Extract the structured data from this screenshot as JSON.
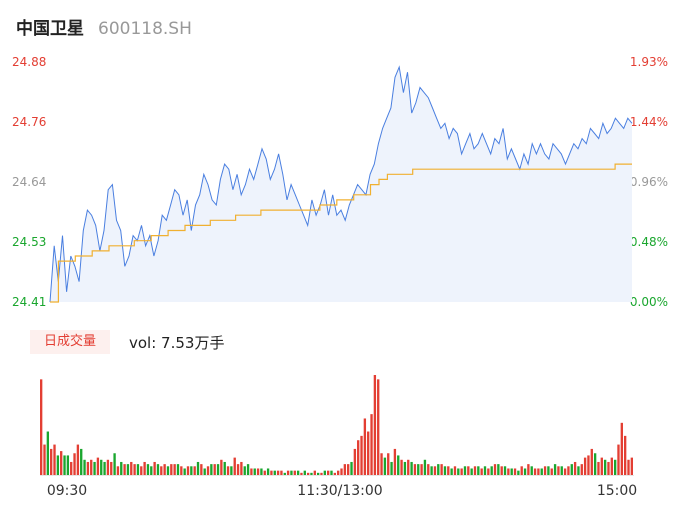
{
  "stock": {
    "name": "中国卫星",
    "code": "600118.SH"
  },
  "colors": {
    "up": "#e33e33",
    "down": "#1aa62e",
    "price_line": "#4a7fe0",
    "avg_line": "#f0b030",
    "area_fill": "#eef3fc"
  },
  "volume_tab": {
    "label": "日成交量"
  },
  "volume_readout": {
    "text": "vol: 7.53万手"
  },
  "time_axis": {
    "labels": [
      "09:30",
      "11:30/13:00",
      "15:00"
    ]
  },
  "chart_data": {
    "type": "line",
    "title": "",
    "price_axis": {
      "ticks": [
        "24.88",
        "24.76",
        "24.64",
        "24.53",
        "24.41"
      ],
      "tick_colors": [
        "up",
        "up",
        "neutral",
        "down",
        "down"
      ]
    },
    "pct_axis": {
      "ticks": [
        "1.93%",
        "1.44%",
        "0.96%",
        "0.48%",
        "0.00%"
      ],
      "tick_colors": [
        "up",
        "up",
        "neutral",
        "down",
        "down"
      ]
    },
    "ylim": [
      24.41,
      24.88
    ],
    "x_sessions": "09:30-11:30, 13:00-15:00",
    "series": [
      {
        "values": [
          24.41,
          24.52,
          24.45,
          24.54,
          24.43,
          24.5,
          24.48,
          24.45,
          24.55,
          24.59,
          24.58,
          24.56,
          24.51,
          24.55,
          24.63,
          24.64,
          24.57,
          24.55,
          24.48,
          24.5,
          24.54,
          24.53,
          24.56,
          24.52,
          24.54,
          24.5,
          24.53,
          24.58,
          24.57,
          24.6,
          24.63,
          24.62,
          24.58,
          24.61,
          24.55,
          24.6,
          24.62,
          24.66,
          24.64,
          24.61,
          24.6,
          24.65,
          24.68,
          24.67,
          24.63,
          24.66,
          24.62,
          24.64,
          24.67,
          24.65,
          24.68,
          24.71,
          24.69,
          24.65,
          24.67,
          24.7,
          24.66,
          24.61,
          24.64,
          24.62,
          24.6,
          24.58,
          24.56,
          24.61,
          24.58,
          24.6,
          24.63,
          24.58,
          24.62,
          24.58,
          24.59,
          24.57,
          24.6,
          24.62,
          24.64,
          24.63,
          24.62,
          24.66,
          24.68,
          24.72,
          24.75,
          24.77,
          24.79,
          24.85,
          24.87,
          24.82,
          24.86,
          24.78,
          24.8,
          24.83,
          24.82,
          24.81,
          24.79,
          24.77,
          24.75,
          24.76,
          24.73,
          24.75,
          24.74,
          24.7,
          24.72,
          24.74,
          24.71,
          24.72,
          24.74,
          24.72,
          24.7,
          24.73,
          24.72,
          24.75,
          24.69,
          24.71,
          24.69,
          24.67,
          24.7,
          24.68,
          24.72,
          24.7,
          24.72,
          24.7,
          24.69,
          24.72,
          24.71,
          24.7,
          24.68,
          24.7,
          24.72,
          24.71,
          24.73,
          24.72,
          24.75,
          24.74,
          24.73,
          24.76,
          24.74,
          24.75,
          24.77,
          24.76,
          24.75,
          24.77,
          24.76
        ],
        "description": "price"
      },
      {
        "values": [
          24.41,
          24.49,
          24.49,
          24.5,
          24.5,
          24.51,
          24.51,
          24.52,
          24.52,
          24.52,
          24.53,
          24.53,
          24.54,
          24.54,
          24.55,
          24.55,
          24.56,
          24.56,
          24.56,
          24.57,
          24.57,
          24.57,
          24.58,
          24.58,
          24.58,
          24.59,
          24.59,
          24.59,
          24.59,
          24.59,
          24.59,
          24.59,
          24.6,
          24.6,
          24.61,
          24.61,
          24.62,
          24.62,
          24.64,
          24.65,
          24.66,
          24.66,
          24.66,
          24.67,
          24.67,
          24.67,
          24.67,
          24.67,
          24.67,
          24.67,
          24.67,
          24.67,
          24.67,
          24.67,
          24.67,
          24.67,
          24.67,
          24.67,
          24.67,
          24.67,
          24.67,
          24.67,
          24.67,
          24.67,
          24.67,
          24.67,
          24.67,
          24.68,
          24.68,
          24.68
        ],
        "description": "average"
      }
    ],
    "volume": {
      "values": [
        44,
        14,
        20,
        12,
        14,
        9,
        11,
        9,
        9,
        6,
        10,
        14,
        12,
        7,
        6,
        7,
        6,
        8,
        7,
        6,
        7,
        6,
        10,
        4,
        6,
        5,
        5,
        6,
        5,
        5,
        4,
        6,
        5,
        4,
        6,
        5,
        4,
        5,
        4,
        5,
        5,
        5,
        4,
        3,
        4,
        4,
        4,
        6,
        5,
        3,
        4,
        5,
        5,
        5,
        7,
        6,
        4,
        4,
        8,
        5,
        6,
        4,
        5,
        3,
        3,
        3,
        3,
        2,
        3,
        2,
        2,
        2,
        2,
        1,
        2,
        2,
        2,
        2,
        1,
        2,
        1,
        1,
        2,
        1,
        1,
        2,
        2,
        2,
        1,
        2,
        3,
        5,
        5,
        6,
        12,
        16,
        18,
        26,
        20,
        28,
        46,
        44,
        10,
        8,
        10,
        6,
        12,
        9,
        7,
        6,
        7,
        6,
        5,
        5,
        5,
        7,
        5,
        4,
        4,
        5,
        5,
        4,
        4,
        3,
        4,
        3,
        3,
        4,
        4,
        3,
        4,
        4,
        3,
        4,
        3,
        4,
        5,
        5,
        4,
        4,
        3,
        3,
        3,
        2,
        4,
        3,
        5,
        4,
        3,
        3,
        3,
        4,
        4,
        3,
        5,
        4,
        4,
        3,
        4,
        5,
        6,
        4,
        5,
        8,
        9,
        12,
        10,
        6,
        8,
        7,
        6,
        8,
        7,
        14,
        24,
        18,
        7,
        8
      ],
      "colors": [
        "up",
        "up",
        "down",
        "up",
        "up",
        "down",
        "up",
        "down",
        "down",
        "up",
        "up",
        "up",
        "down",
        "down",
        "up",
        "up",
        "down",
        "up",
        "down",
        "down",
        "up",
        "up",
        "down",
        "up",
        "down",
        "up",
        "down",
        "up",
        "up",
        "down",
        "up",
        "up",
        "down",
        "down",
        "up",
        "down",
        "up",
        "up",
        "down",
        "up",
        "up",
        "down",
        "up",
        "down",
        "up",
        "down",
        "up",
        "down",
        "up",
        "down",
        "up",
        "down",
        "up",
        "down",
        "up",
        "down",
        "up",
        "down",
        "up",
        "up",
        "up",
        "down",
        "down",
        "up",
        "down",
        "up",
        "down",
        "up",
        "down",
        "up",
        "down",
        "up",
        "up",
        "down",
        "up",
        "down",
        "up",
        "down",
        "up",
        "down",
        "up",
        "down",
        "up",
        "down",
        "up",
        "down",
        "up",
        "down",
        "up",
        "up",
        "up",
        "up",
        "up",
        "down",
        "up",
        "up",
        "up",
        "up",
        "up",
        "up",
        "up",
        "up",
        "up",
        "down",
        "up",
        "down",
        "up",
        "down",
        "up",
        "down",
        "up",
        "down",
        "up",
        "down",
        "up",
        "down",
        "up",
        "down",
        "up",
        "down",
        "up",
        "down",
        "up",
        "down",
        "up",
        "down",
        "up",
        "down",
        "up",
        "down",
        "up",
        "down",
        "up",
        "down",
        "up",
        "down",
        "up",
        "down",
        "up",
        "down",
        "up",
        "down",
        "up",
        "down",
        "up",
        "down",
        "up",
        "down",
        "up",
        "up",
        "down",
        "up",
        "down",
        "up",
        "down",
        "up",
        "down",
        "up",
        "up",
        "down",
        "up",
        "down",
        "up",
        "up",
        "up",
        "up",
        "down",
        "up",
        "up",
        "down",
        "up",
        "up",
        "down",
        "up",
        "up",
        "up",
        "up",
        "up"
      ]
    }
  }
}
